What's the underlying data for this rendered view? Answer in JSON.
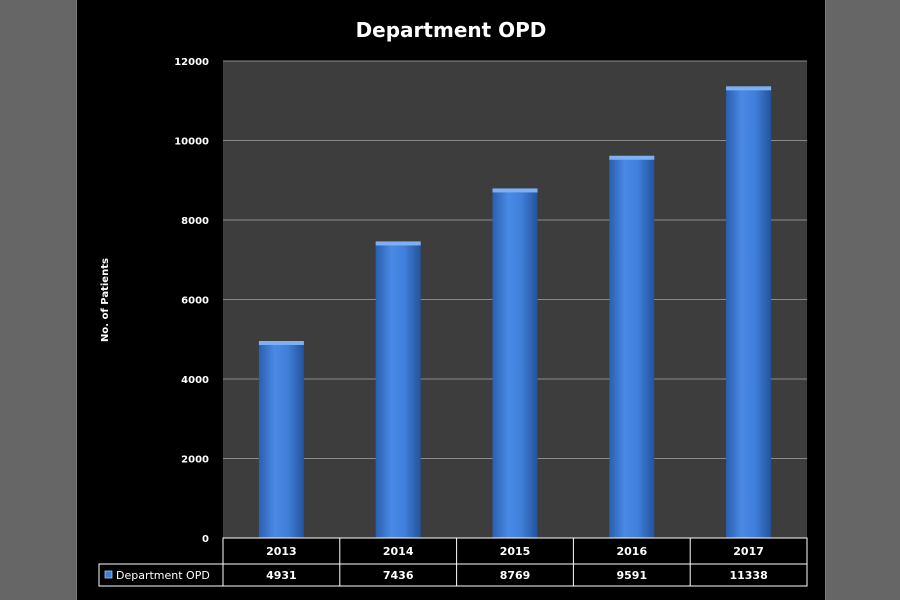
{
  "chart_data": {
    "type": "bar",
    "title": "Department OPD",
    "xlabel": "",
    "ylabel": "No. of Patients",
    "categories": [
      "2013",
      "2014",
      "2015",
      "2016",
      "2017"
    ],
    "series": [
      {
        "name": "Department OPD",
        "values": [
          4931,
          7436,
          8769,
          9591,
          11338
        ]
      }
    ],
    "ylim": [
      0,
      12000
    ],
    "yticks": [
      "0",
      "2000",
      "4000",
      "6000",
      "8000",
      "10000",
      "12000"
    ],
    "data_table": true,
    "grid": true,
    "colors": {
      "bar": "#3d7fd9",
      "plot_bg": "#3d3d3d",
      "page_bg": "#000000",
      "grid": "#8a8a8a"
    }
  }
}
